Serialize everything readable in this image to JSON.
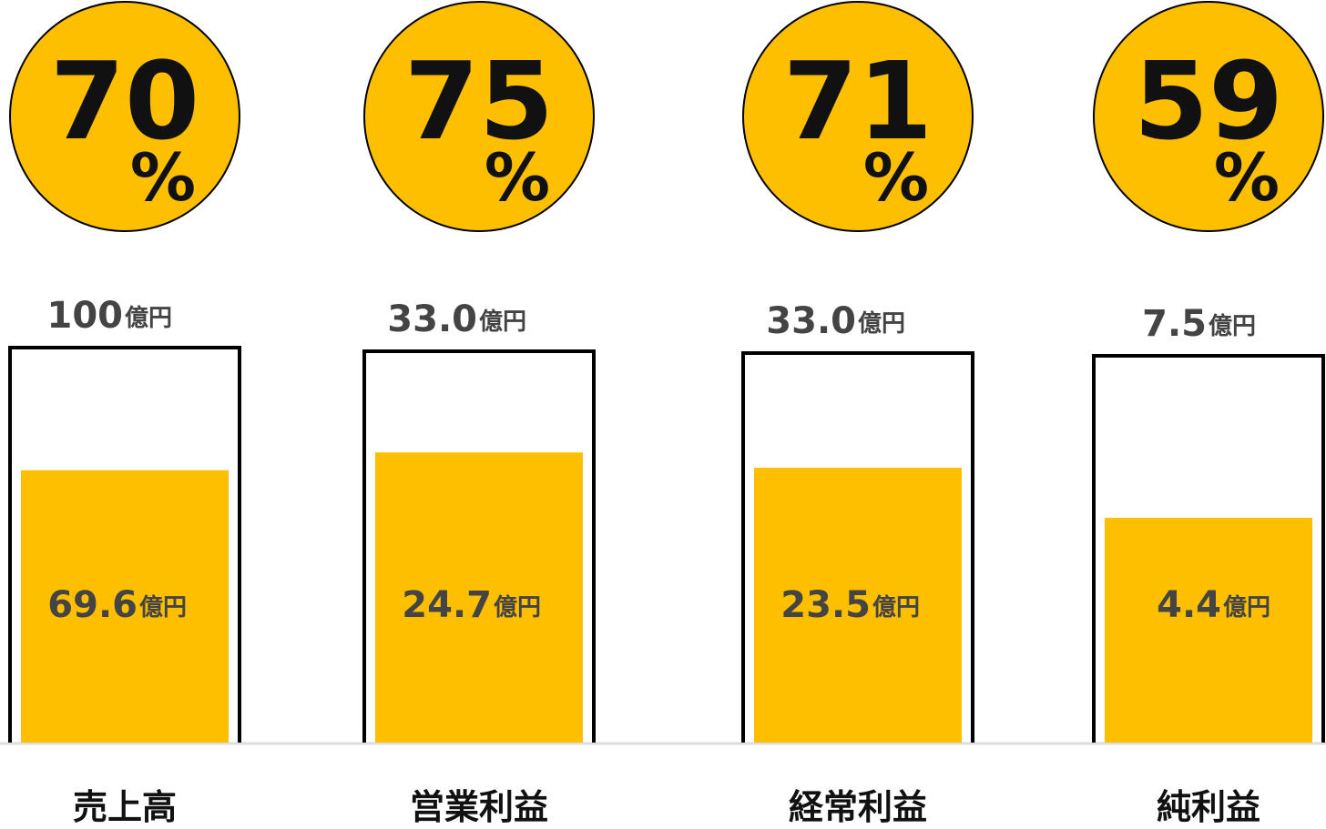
{
  "chart_data": {
    "type": "progress",
    "categories": [
      "売上高",
      "営業利益",
      "経常利益",
      "純利益"
    ],
    "values": [
      69.6,
      24.7,
      23.5,
      4.4
    ],
    "targets": [
      100,
      33.0,
      33.0,
      7.5
    ],
    "target_labels": [
      "100",
      "33.0",
      "33.0",
      "7.5"
    ],
    "percents": [
      70,
      75,
      71,
      59
    ],
    "percent_unit": "%",
    "unit": "億円",
    "color": "#fdbf00"
  }
}
